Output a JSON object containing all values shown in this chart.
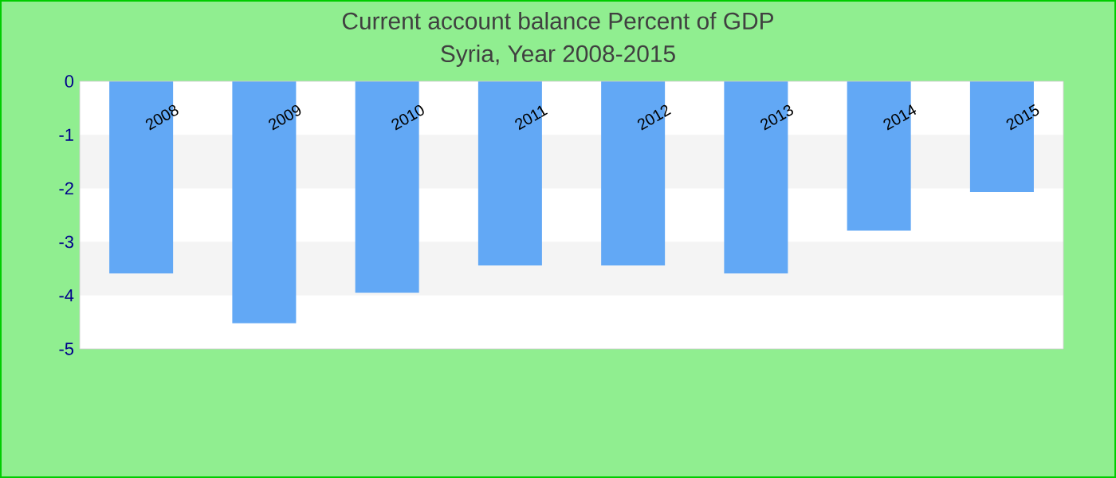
{
  "chart_data": {
    "type": "bar",
    "title": "Current account balance  Percent of GDP",
    "subtitle": "Syria, Year 2008-2015",
    "categories": [
      "2008",
      "2009",
      "2010",
      "2011",
      "2012",
      "2013",
      "2014",
      "2015"
    ],
    "values": [
      -3.59,
      -4.52,
      -3.95,
      -3.44,
      -3.44,
      -3.59,
      -2.79,
      -2.07
    ],
    "color": "#62a8f5",
    "ylim": [
      -5,
      0
    ],
    "yticks": [
      -5,
      -4,
      -3,
      -2,
      -1,
      0
    ]
  }
}
